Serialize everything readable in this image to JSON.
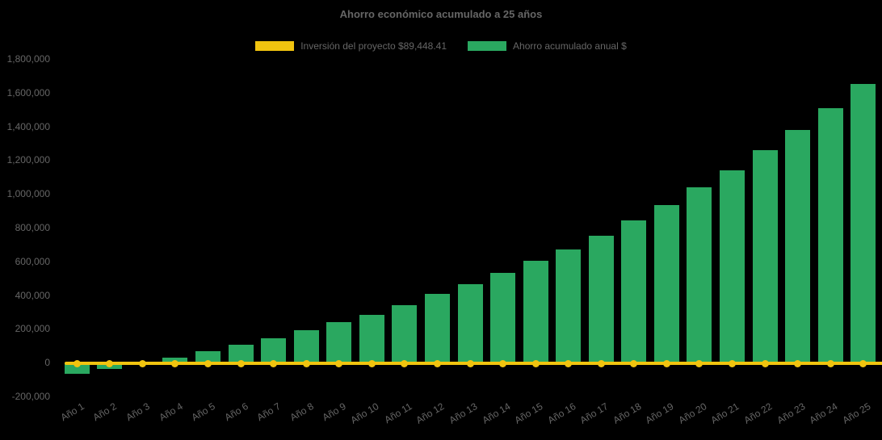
{
  "chart_data": {
    "type": "bar",
    "title": "Ahorro económico acumulado a 25 años",
    "background": "#000000",
    "text_color": "#666666",
    "grid": false,
    "legend_position": "top",
    "categories": [
      "Año 1",
      "Año 2",
      "Año 3",
      "Año 4",
      "Año 5",
      "Año 6",
      "Año 7",
      "Año 8",
      "Año 9",
      "Año 10",
      "Año 11",
      "Año 12",
      "Año 13",
      "Año 14",
      "Año 15",
      "Año 16",
      "Año 17",
      "Año 18",
      "Año 19",
      "Año 20",
      "Año 21",
      "Año 22",
      "Año 23",
      "Año 24",
      "Año 25"
    ],
    "series": [
      {
        "name": "Inversión del proyecto $89,448.41",
        "type": "line",
        "color": "#f1c40f",
        "marker": "circle",
        "plotted_value": 0,
        "investment_amount_label": "$89,448.41"
      },
      {
        "name": "Ahorro acumulado anual $",
        "type": "bar",
        "color": "#2aa860",
        "values": [
          -65000,
          -35000,
          -8000,
          31000,
          67000,
          104000,
          143000,
          192000,
          239000,
          285000,
          342000,
          406000,
          465000,
          530000,
          602000,
          671000,
          752000,
          845000,
          936000,
          1041000,
          1141000,
          1260000,
          1381000,
          1510000,
          1651000
        ]
      }
    ],
    "xlabel": "",
    "ylabel": "",
    "ylim": [
      -200000,
      1800000
    ],
    "ytick_step": 200000,
    "ytick_labels": [
      "1,800,000",
      "1,600,000",
      "1,400,000",
      "1,200,000",
      "1,000,000",
      "800,000",
      "600,000",
      "400,000",
      "200,000",
      "0",
      "-200,000"
    ]
  }
}
